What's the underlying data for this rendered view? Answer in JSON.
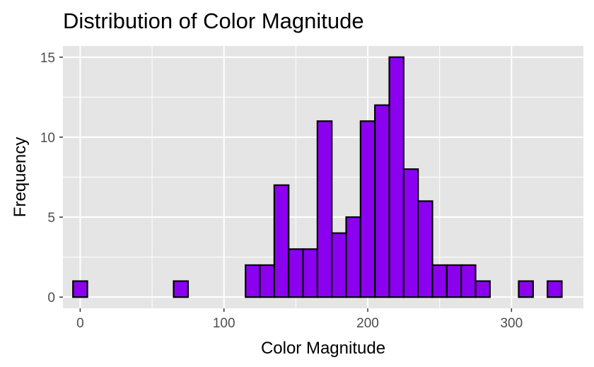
{
  "chart_data": {
    "type": "bar",
    "title": "Distribution of Color Magnitude",
    "xlabel": "Color Magnitude",
    "ylabel": "Frequency",
    "xlim": [
      -12,
      350
    ],
    "ylim": [
      -0.7,
      15.7
    ],
    "x_ticks": [
      0,
      100,
      200,
      300
    ],
    "y_ticks": [
      0,
      5,
      10,
      15
    ],
    "bin_width": 10,
    "bin_centers": [
      0,
      10,
      20,
      30,
      40,
      50,
      60,
      70,
      80,
      90,
      100,
      110,
      120,
      130,
      140,
      150,
      160,
      170,
      180,
      190,
      200,
      210,
      220,
      230,
      240,
      250,
      260,
      270,
      280,
      290,
      300,
      310,
      320,
      330
    ],
    "values": [
      1,
      0,
      0,
      0,
      0,
      0,
      0,
      1,
      0,
      0,
      0,
      0,
      2,
      2,
      7,
      3,
      3,
      11,
      4,
      5,
      11,
      12,
      15,
      8,
      6,
      2,
      2,
      2,
      1,
      0,
      0,
      1,
      0,
      1
    ],
    "grid": true,
    "colors": {
      "bar_fill": "#8B00EE",
      "bar_stroke": "#000000",
      "panel_background": "#E5E5E5",
      "grid": "#FFFFFF"
    }
  }
}
